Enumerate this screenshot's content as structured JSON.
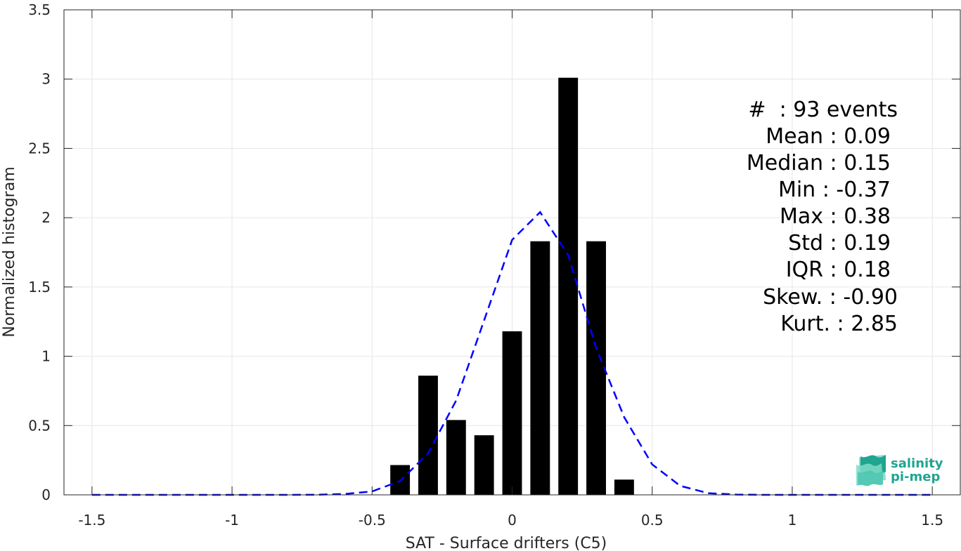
{
  "chart_data": {
    "type": "bar",
    "xlabel": "SAT - Surface drifters (C5)",
    "ylabel": "Normalized histogram",
    "xlim": [
      -1.6,
      1.6
    ],
    "ylim": [
      0,
      3.5
    ],
    "grid": true,
    "x_ticks": [
      -1.5,
      -1,
      -0.5,
      0,
      0.5,
      1,
      1.5
    ],
    "x_tick_labels": [
      "-1.5",
      "-1",
      "-0.5",
      "0",
      "0.5",
      "1",
      "1.5"
    ],
    "y_ticks": [
      0,
      0.5,
      1,
      1.5,
      2,
      2.5,
      3,
      3.5
    ],
    "y_tick_labels": [
      "0",
      "0.5",
      "1",
      "1.5",
      "2",
      "2.5",
      "3",
      "3.5"
    ],
    "bar_width": 0.07,
    "bar_color": "#000000",
    "series": [
      {
        "type": "bar",
        "x": [
          -0.4,
          -0.3,
          -0.2,
          -0.1,
          0.0,
          0.1,
          0.2,
          0.3,
          0.4
        ],
        "values": [
          0.215,
          0.86,
          0.54,
          0.43,
          1.18,
          1.83,
          3.01,
          1.83,
          0.11
        ]
      },
      {
        "type": "line",
        "style": "dashed",
        "color": "#0000ff",
        "x": [
          -1.5,
          -1.4,
          -1.3,
          -1.2,
          -1.1,
          -1.0,
          -0.9,
          -0.8,
          -0.7,
          -0.6,
          -0.5,
          -0.4,
          -0.3,
          -0.2,
          -0.1,
          0.0,
          0.1,
          0.2,
          0.3,
          0.4,
          0.5,
          0.6,
          0.7,
          0.8,
          0.9,
          1.0,
          1.1,
          1.2,
          1.3,
          1.4,
          1.5
        ],
        "values": [
          0,
          0,
          0,
          0,
          0,
          0,
          0,
          0,
          0.001,
          0.006,
          0.025,
          0.1,
          0.3,
          0.68,
          1.26,
          1.84,
          2.04,
          1.73,
          1.06,
          0.56,
          0.22,
          0.065,
          0.012,
          0.002,
          0,
          0,
          0,
          0,
          0,
          0,
          0
        ]
      }
    ]
  },
  "stats": {
    "lines": [
      "#  : 93 events",
      "Mean : 0.09",
      "Median : 0.15",
      "Min : -0.37",
      "Max : 0.38",
      "Std : 0.19",
      "IQR : 0.18",
      "Skew. : -0.90",
      "Kurt. : 2.85"
    ]
  },
  "logo": {
    "line1": "salinity",
    "line2": "pi-mep",
    "color": "#1fa590"
  }
}
